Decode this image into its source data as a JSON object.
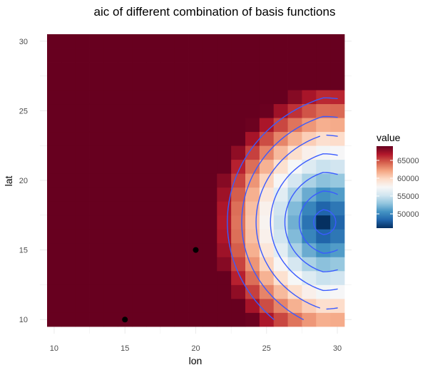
{
  "chart_data": {
    "type": "heatmap",
    "title": "aic of different combination of basis functions",
    "xlabel": "lon",
    "ylabel": "lat",
    "xlim": [
      9.5,
      30.5
    ],
    "ylim": [
      9.5,
      30.5
    ],
    "x_ticks": [
      10,
      15,
      20,
      25,
      30
    ],
    "y_ticks": [
      10,
      15,
      20,
      25,
      30
    ],
    "grid": true,
    "grid_step": 1,
    "value_range": [
      46000,
      69000
    ],
    "legend": {
      "title": "value",
      "position": "right",
      "ticks": [
        50000,
        55000,
        60000,
        65000
      ],
      "tick_labels": [
        "50000",
        "55000",
        "60000",
        "65000"
      ]
    },
    "colormap": [
      "#053061",
      "#2166ac",
      "#4393c3",
      "#92c5de",
      "#d1e5f0",
      "#f7f7f7",
      "#fddbc7",
      "#f4a582",
      "#d6604d",
      "#b2182b",
      "#67001f"
    ],
    "surface": {
      "description": "value on a 21x21 grid of integer lon/lat; rows ordered by lat 10..30, columns by lon 10..30",
      "center_low": [
        29,
        17
      ],
      "base": 46000,
      "a": 1400,
      "b": 1300
    },
    "contour_levels": [
      48000,
      51000,
      54000,
      57000,
      60000,
      63000,
      66000
    ],
    "contour_color": "#3a5bff",
    "points": [
      {
        "x": 15,
        "y": 10
      },
      {
        "x": 20,
        "y": 15
      }
    ],
    "point_color": "#000000"
  }
}
